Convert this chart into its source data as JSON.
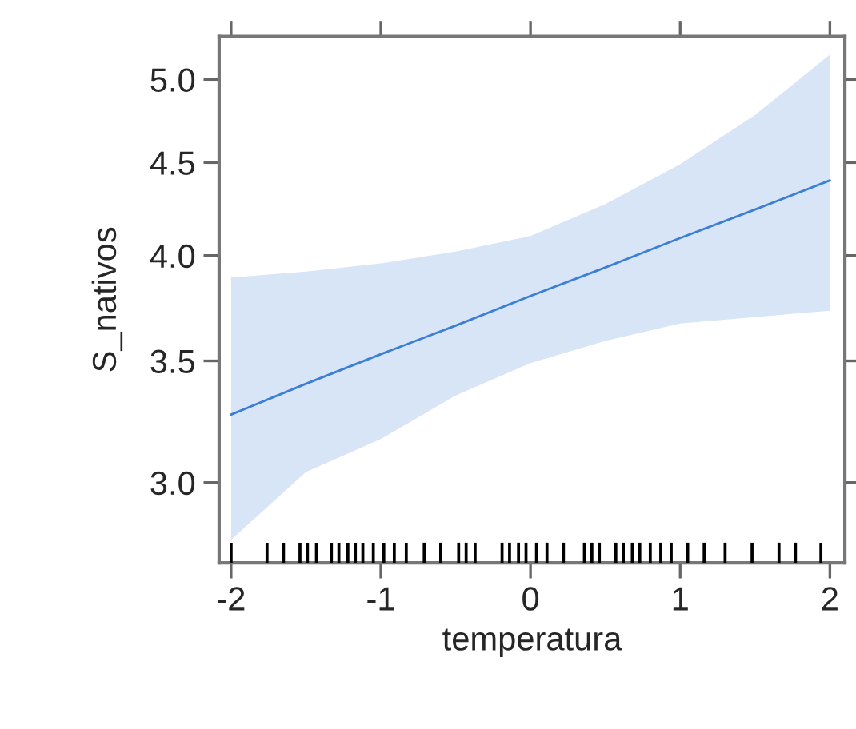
{
  "chart_data": {
    "type": "line",
    "xlabel": "temperatura",
    "ylabel": "S_nativos",
    "log": "y",
    "xlim": [
      -2.08,
      2.1
    ],
    "xticks": [
      -2,
      -1,
      0,
      1,
      2
    ],
    "ylim": [
      2.71,
      5.28
    ],
    "yticks": [
      {
        "value": 3.0,
        "label": "3.0"
      },
      {
        "value": 3.5,
        "label": "3.5"
      },
      {
        "value": 4.0,
        "label": "4.0"
      },
      {
        "value": 4.5,
        "label": "4.5"
      },
      {
        "value": 5.0,
        "label": "5.0"
      }
    ],
    "grid": false,
    "legend": false,
    "series": [
      {
        "type": "line",
        "color": "#3a7fd5",
        "x": [
          -2,
          -1.5,
          -1,
          -0.5,
          0,
          0.5,
          1,
          1.5,
          2
        ],
        "values": [
          3.27,
          3.4,
          3.53,
          3.66,
          3.8,
          3.94,
          4.09,
          4.24,
          4.4
        ],
        "lower": [
          2.79,
          3.04,
          3.17,
          3.35,
          3.49,
          3.59,
          3.67,
          3.7,
          3.73
        ],
        "upper": [
          3.89,
          3.92,
          3.96,
          4.02,
          4.1,
          4.27,
          4.49,
          4.78,
          5.16
        ]
      },
      {
        "type": "bar",
        "color": "#000000",
        "x": [
          -2.0,
          -1.76,
          -1.65,
          -1.54,
          -1.49,
          -1.43,
          -1.33,
          -1.28,
          -1.22,
          -1.17,
          -1.12,
          -1.05,
          -0.98,
          -0.91,
          -0.83,
          -0.71,
          -0.6,
          -0.48,
          -0.43,
          -0.37,
          -0.19,
          -0.14,
          -0.08,
          -0.03,
          0.04,
          0.11,
          0.22,
          0.36,
          0.41,
          0.46,
          0.57,
          0.62,
          0.68,
          0.73,
          0.8,
          0.87,
          0.94,
          1.05,
          1.16,
          1.3,
          1.48,
          1.66,
          1.77,
          1.94
        ],
        "base": [
          2.71,
          2.71,
          2.71,
          2.71,
          2.71,
          2.71,
          2.71,
          2.71,
          2.71,
          2.71,
          2.71,
          2.71,
          2.71,
          2.71,
          2.71,
          2.71,
          2.71,
          2.71,
          2.71,
          2.71,
          2.71,
          2.71,
          2.71,
          2.71,
          2.71,
          2.71,
          2.71,
          2.71,
          2.71,
          2.71,
          2.71,
          2.71,
          2.71,
          2.71,
          2.71,
          2.71,
          2.71,
          2.71,
          2.71,
          2.71,
          2.71,
          2.71,
          2.71,
          2.71
        ],
        "values": [
          0.07,
          0.07,
          0.07,
          0.07,
          0.07,
          0.07,
          0.07,
          0.07,
          0.07,
          0.07,
          0.07,
          0.07,
          0.07,
          0.07,
          0.07,
          0.07,
          0.07,
          0.07,
          0.07,
          0.07,
          0.07,
          0.07,
          0.07,
          0.07,
          0.07,
          0.07,
          0.07,
          0.07,
          0.07,
          0.07,
          0.07,
          0.07,
          0.07,
          0.07,
          0.07,
          0.07,
          0.07,
          0.07,
          0.07,
          0.07,
          0.07,
          0.07,
          0.07,
          0.07
        ]
      }
    ]
  }
}
